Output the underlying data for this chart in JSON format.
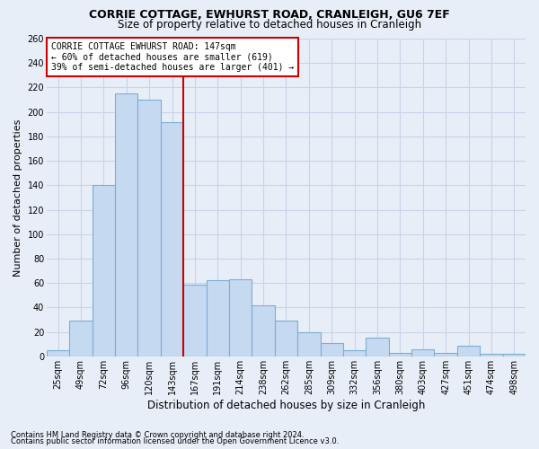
{
  "title1": "CORRIE COTTAGE, EWHURST ROAD, CRANLEIGH, GU6 7EF",
  "title2": "Size of property relative to detached houses in Cranleigh",
  "xlabel": "Distribution of detached houses by size in Cranleigh",
  "ylabel": "Number of detached properties",
  "footnote1": "Contains HM Land Registry data © Crown copyright and database right 2024.",
  "footnote2": "Contains public sector information licensed under the Open Government Licence v3.0.",
  "annotation_line1": "CORRIE COTTAGE EWHURST ROAD: 147sqm",
  "annotation_line2": "← 60% of detached houses are smaller (619)",
  "annotation_line3": "39% of semi-detached houses are larger (401) →",
  "bar_color": "#c5d9f0",
  "bar_edge_color": "#7bafd4",
  "vline_color": "#cc0000",
  "categories": [
    "25sqm",
    "49sqm",
    "72sqm",
    "96sqm",
    "120sqm",
    "143sqm",
    "167sqm",
    "191sqm",
    "214sqm",
    "238sqm",
    "262sqm",
    "285sqm",
    "309sqm",
    "332sqm",
    "356sqm",
    "380sqm",
    "403sqm",
    "427sqm",
    "451sqm",
    "474sqm",
    "498sqm"
  ],
  "values": [
    5,
    29,
    140,
    215,
    210,
    192,
    59,
    62,
    63,
    42,
    29,
    20,
    11,
    5,
    15,
    3,
    6,
    3,
    9,
    2,
    2
  ],
  "ylim": [
    0,
    260
  ],
  "yticks": [
    0,
    20,
    40,
    60,
    80,
    100,
    120,
    140,
    160,
    180,
    200,
    220,
    240,
    260
  ],
  "background_color": "#e8eef7",
  "grid_color": "#c8d4e8",
  "title_fontsize": 9,
  "subtitle_fontsize": 8.5,
  "ylabel_fontsize": 8,
  "xlabel_fontsize": 8.5,
  "tick_fontsize": 7,
  "annot_fontsize": 7,
  "footnote_fontsize": 6
}
